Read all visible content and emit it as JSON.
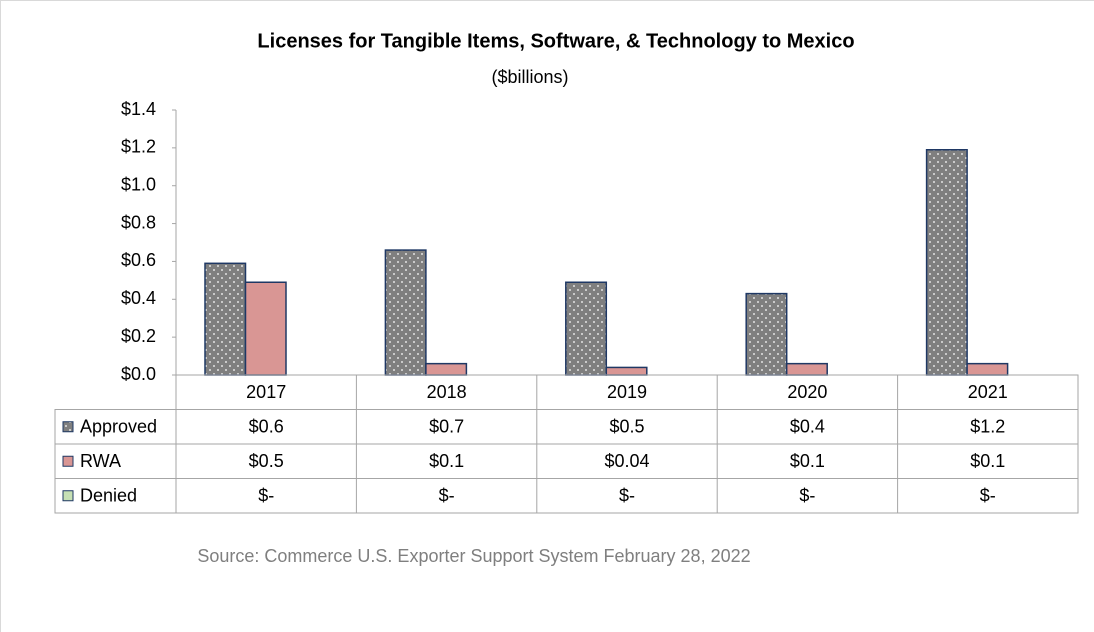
{
  "chart_data": {
    "type": "bar",
    "title": "Licenses for Tangible Items, Software, & Technology to Mexico",
    "subtitle": "($billions)",
    "source": "Source: Commerce U.S. Exporter Support System February 28, 2022",
    "categories": [
      "2017",
      "2018",
      "2019",
      "2020",
      "2021"
    ],
    "series": [
      {
        "name": "Approved",
        "color": "#7f7f7f",
        "values": [
          0.59,
          0.66,
          0.49,
          0.43,
          1.19
        ],
        "value_labels": [
          "$0.6",
          "$0.7",
          "$0.5",
          "$0.4",
          "$1.2"
        ]
      },
      {
        "name": "RWA",
        "color": "#d99694",
        "values": [
          0.49,
          0.06,
          0.04,
          0.06,
          0.06
        ],
        "value_labels": [
          "$0.5",
          "$0.1",
          "$0.04",
          "$0.1",
          "$0.1"
        ]
      },
      {
        "name": "Denied",
        "color": "#c6e0b4",
        "values": [
          0,
          0,
          0,
          0,
          0
        ],
        "value_labels": [
          "$-",
          "$-",
          "$-",
          "$-",
          "$-"
        ]
      }
    ],
    "ylim": [
      0,
      1.4
    ],
    "yticks": [
      {
        "value": 0,
        "label": "$0.0"
      },
      {
        "value": 0.2,
        "label": "$0.2"
      },
      {
        "value": 0.4,
        "label": "$0.4"
      },
      {
        "value": 0.6,
        "label": "$0.6"
      },
      {
        "value": 0.8,
        "label": "$0.8"
      },
      {
        "value": 1.0,
        "label": "$1.0"
      },
      {
        "value": 1.2,
        "label": "$1.2"
      },
      {
        "value": 1.4,
        "label": "$1.4"
      }
    ]
  }
}
